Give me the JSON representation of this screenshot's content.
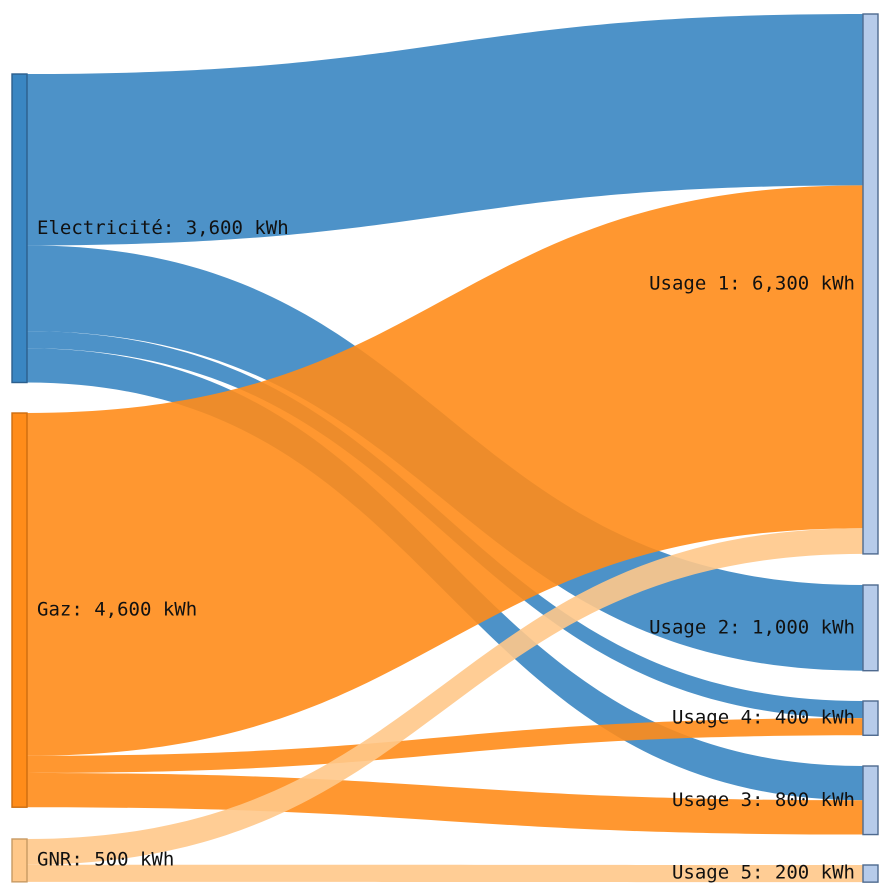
{
  "chart_data": {
    "type": "sankey",
    "units": "kWh",
    "sources": [
      {
        "key": "elec",
        "label": "Electricité: 3,600 kWh",
        "value": 3600,
        "color": "#3a86c2",
        "stroke": "#2c5f8d"
      },
      {
        "key": "gaz",
        "label": "Gaz: 4,600 kWh",
        "value": 4600,
        "color": "#ff8c1a",
        "stroke": "#cc6d10"
      },
      {
        "key": "gnr",
        "label": "GNR: 500 kWh",
        "value": 500,
        "color": "#ffc88a",
        "stroke": "#c89a63"
      }
    ],
    "targets": [
      {
        "key": "u1",
        "label": "Usage 1: 6,300 kWh",
        "value": 6300
      },
      {
        "key": "u2",
        "label": "Usage 2: 1,000 kWh",
        "value": 1000
      },
      {
        "key": "u4",
        "label": "Usage 4: 400 kWh",
        "value": 400
      },
      {
        "key": "u3",
        "label": "Usage 3: 800 kWh",
        "value": 800
      },
      {
        "key": "u5",
        "label": "Usage 5: 200 kWh",
        "value": 200
      }
    ],
    "target_color": "#b6cbea",
    "target_stroke": "#4e6a8f",
    "links": [
      {
        "source": "elec",
        "target": "u1",
        "value": 2000
      },
      {
        "source": "elec",
        "target": "u2",
        "value": 1000
      },
      {
        "source": "elec",
        "target": "u4",
        "value": 200
      },
      {
        "source": "elec",
        "target": "u3",
        "value": 400
      },
      {
        "source": "gaz",
        "target": "u1",
        "value": 4000
      },
      {
        "source": "gaz",
        "target": "u4",
        "value": 200
      },
      {
        "source": "gaz",
        "target": "u3",
        "value": 400
      },
      {
        "source": "gnr",
        "target": "u1",
        "value": 300
      },
      {
        "source": "gnr",
        "target": "u5",
        "value": 200
      }
    ],
    "link_opacity": 0.9
  }
}
